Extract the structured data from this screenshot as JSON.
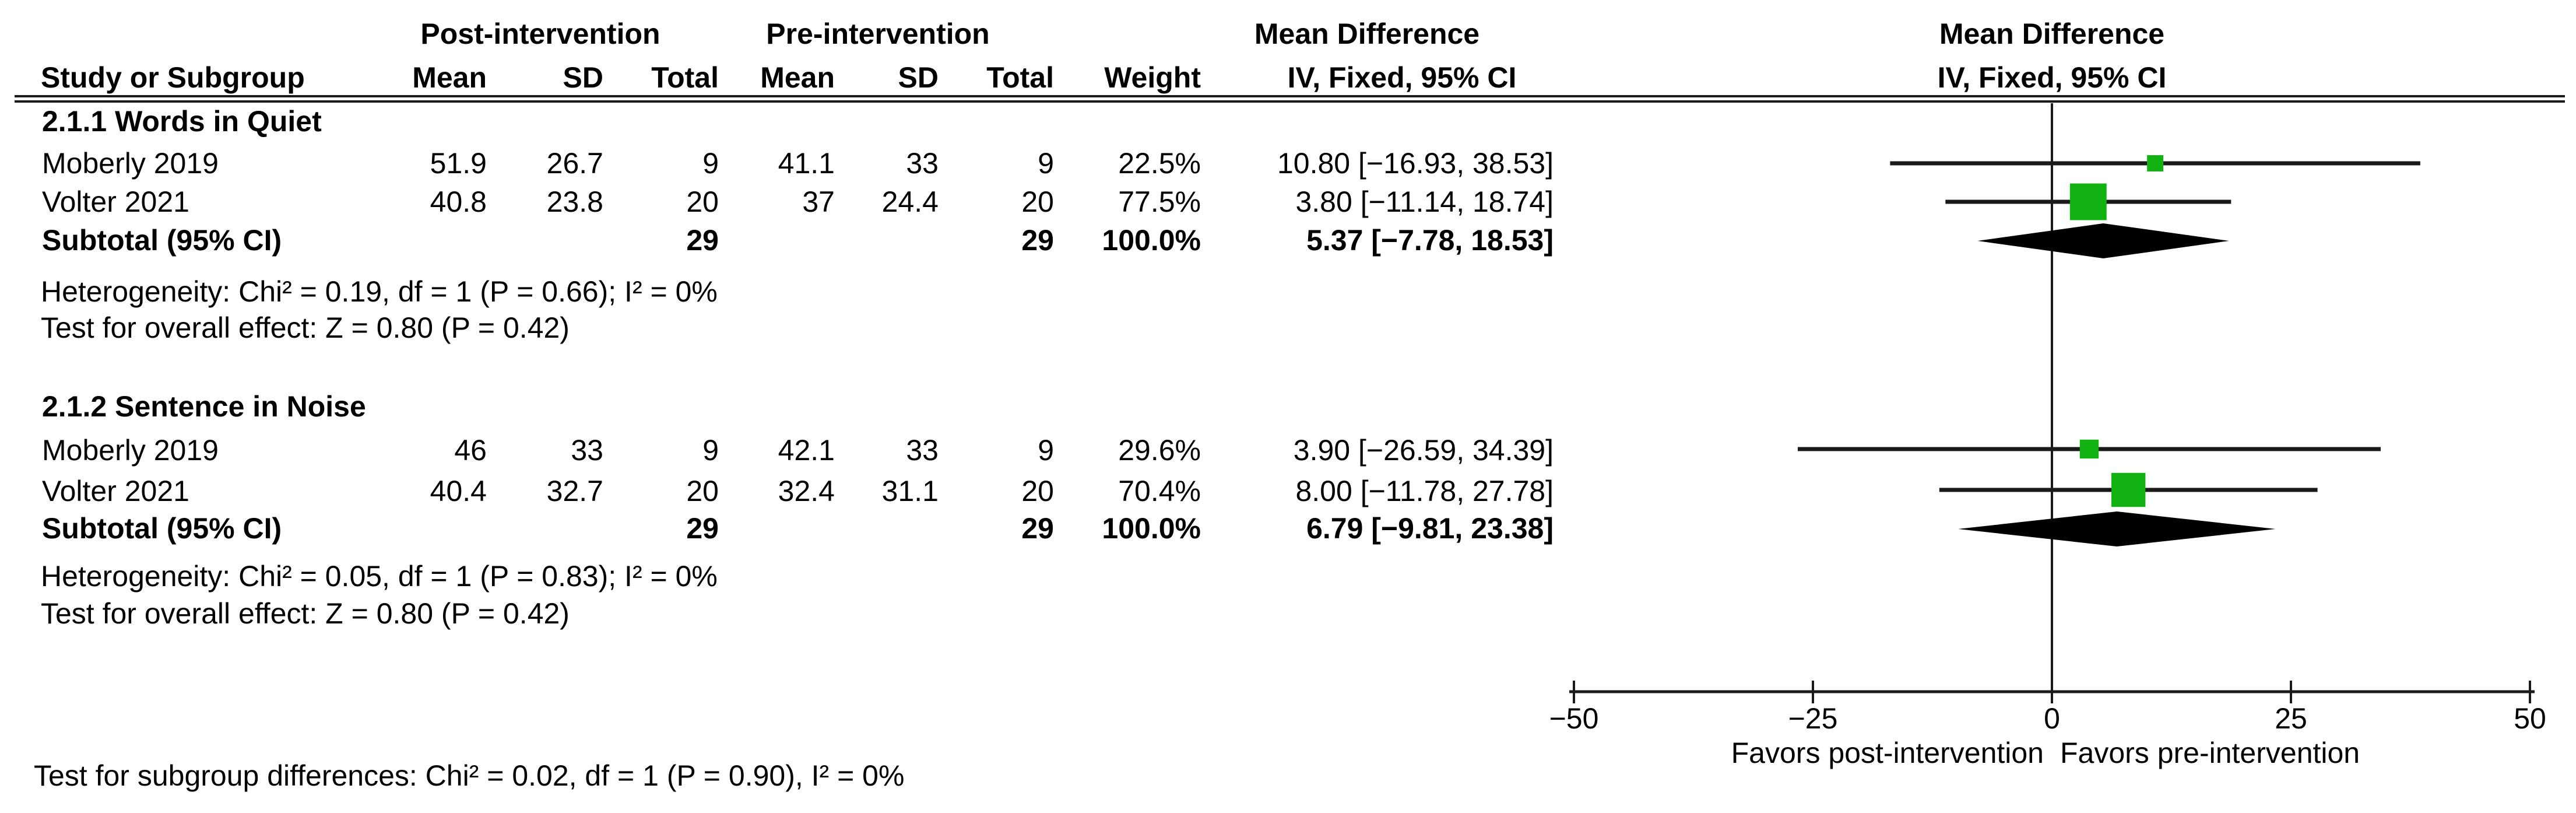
{
  "header": {
    "study_col": "Study or Subgroup",
    "group_post": "Post-intervention",
    "group_pre": "Pre-intervention",
    "effect_title": "Mean Difference",
    "effect_model": "IV, Fixed, 95% CI",
    "mean": "Mean",
    "sd": "SD",
    "total": "Total",
    "weight": "Weight"
  },
  "sections": [
    {
      "title": "2.1.1 Words in Quiet",
      "studies": [
        {
          "name": "Moberly 2019",
          "mean1": "51.9",
          "sd1": "26.7",
          "n1": "9",
          "mean2": "41.1",
          "sd2": "33",
          "n2": "9",
          "weight": "22.5%",
          "ci": "10.80 [−16.93, 38.53]"
        },
        {
          "name": "Volter 2021",
          "mean1": "40.8",
          "sd1": "23.8",
          "n1": "20",
          "mean2": "37",
          "sd2": "24.4",
          "n2": "20",
          "weight": "77.5%",
          "ci": "3.80 [−11.14, 18.74]"
        }
      ],
      "subtotal": {
        "label": "Subtotal (95% CI)",
        "n1": "29",
        "n2": "29",
        "weight": "100.0%",
        "ci": "5.37 [−7.78, 18.53]"
      },
      "heterogeneity": "Heterogeneity: Chi² = 0.19, df = 1 (P = 0.66); I² = 0%",
      "overall": "Test for overall effect: Z = 0.80 (P = 0.42)"
    },
    {
      "title": "2.1.2 Sentence in Noise",
      "studies": [
        {
          "name": "Moberly 2019",
          "mean1": "46",
          "sd1": "33",
          "n1": "9",
          "mean2": "42.1",
          "sd2": "33",
          "n2": "9",
          "weight": "29.6%",
          "ci": "3.90 [−26.59, 34.39]"
        },
        {
          "name": "Volter 2021",
          "mean1": "40.4",
          "sd1": "32.7",
          "n1": "20",
          "mean2": "32.4",
          "sd2": "31.1",
          "n2": "20",
          "weight": "70.4%",
          "ci": "8.00 [−11.78, 27.78]"
        }
      ],
      "subtotal": {
        "label": "Subtotal (95% CI)",
        "n1": "29",
        "n2": "29",
        "weight": "100.0%",
        "ci": "6.79 [−9.81, 23.38]"
      },
      "heterogeneity": "Heterogeneity: Chi² = 0.05, df = 1 (P = 0.83); I² = 0%",
      "overall": "Test for overall effect: Z = 0.80 (P = 0.42)"
    }
  ],
  "footer": "Test for subgroup differences: Chi² = 0.02, df = 1 (P = 0.90), I² = 0%",
  "axis_labels": {
    "ticks": [
      "−50",
      "−25",
      "0",
      "25",
      "50"
    ],
    "favors_left": "Favors post-intervention",
    "favors_right": "Favors pre-intervention"
  },
  "colors": {
    "marker_green": "#12B212",
    "line_black": "#1a1a1a",
    "diamond_black": "#000000"
  },
  "chart_data": {
    "type": "forest",
    "effect_measure": "Mean Difference",
    "model": "IV, Fixed, 95% CI",
    "axis": {
      "min": -50,
      "max": 50,
      "ticks": [
        -50,
        -25,
        0,
        25,
        50
      ]
    },
    "sections": [
      {
        "title": "2.1.1 Words in Quiet",
        "studies": [
          {
            "name": "Moberly 2019",
            "md": 10.8,
            "lo": -16.93,
            "hi": 38.53,
            "weight_pct": 22.5
          },
          {
            "name": "Volter 2021",
            "md": 3.8,
            "lo": -11.14,
            "hi": 18.74,
            "weight_pct": 77.5
          }
        ],
        "subtotal": {
          "md": 5.37,
          "lo": -7.78,
          "hi": 18.53
        }
      },
      {
        "title": "2.1.2 Sentence in Noise",
        "studies": [
          {
            "name": "Moberly 2019",
            "md": 3.9,
            "lo": -26.59,
            "hi": 34.39,
            "weight_pct": 29.6
          },
          {
            "name": "Volter 2021",
            "md": 8.0,
            "lo": -11.78,
            "hi": 27.78,
            "weight_pct": 70.4
          }
        ],
        "subtotal": {
          "md": 6.79,
          "lo": -9.81,
          "hi": 23.38
        }
      }
    ]
  }
}
